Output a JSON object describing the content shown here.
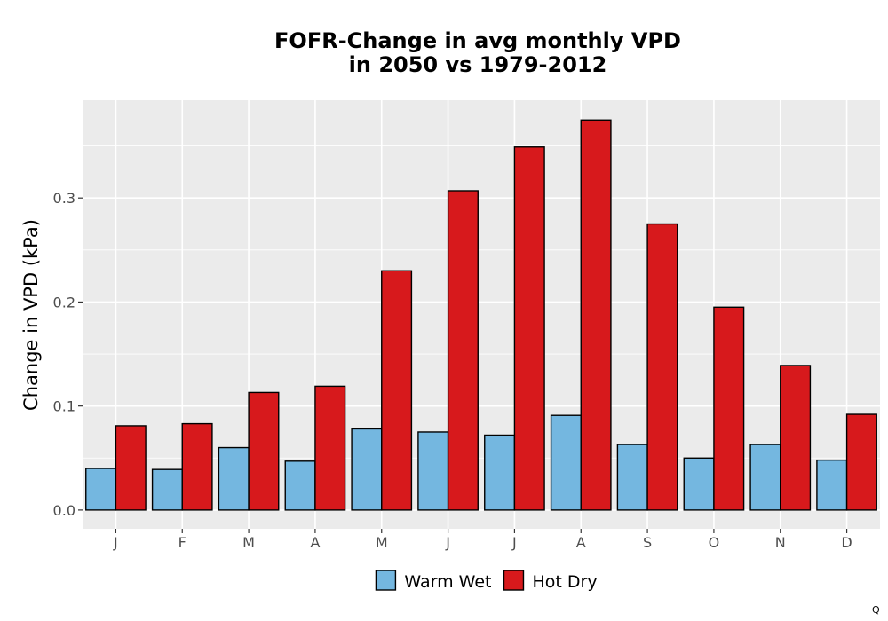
{
  "chart_data": {
    "type": "bar",
    "title_line1": "FOFR-Change in avg monthly VPD",
    "title_line2": "in 2050 vs 1979-2012",
    "xlabel": "",
    "ylabel": "Change in VPD (kPa)",
    "categories": [
      "J",
      "F",
      "M",
      "A",
      "M",
      "J",
      "J",
      "A",
      "S",
      "O",
      "N",
      "D"
    ],
    "series": [
      {
        "name": "Warm Wet",
        "color": "#74b7e0",
        "values": [
          0.04,
          0.039,
          0.06,
          0.047,
          0.078,
          0.075,
          0.072,
          0.091,
          0.063,
          0.05,
          0.063,
          0.048
        ]
      },
      {
        "name": "Hot Dry",
        "color": "#d7191c",
        "values": [
          0.081,
          0.083,
          0.113,
          0.119,
          0.23,
          0.307,
          0.349,
          0.375,
          0.275,
          0.195,
          0.139,
          0.092
        ]
      }
    ],
    "ylim": [
      -0.018,
      0.394
    ],
    "yticks": [
      0.0,
      0.1,
      0.2,
      0.3
    ],
    "ytick_labels": [
      "0.0",
      "0.1",
      "0.2",
      "0.3"
    ],
    "grid": true,
    "legend_position": "bottom",
    "panel_background": "#ebebeb"
  },
  "corner_note": "Q"
}
